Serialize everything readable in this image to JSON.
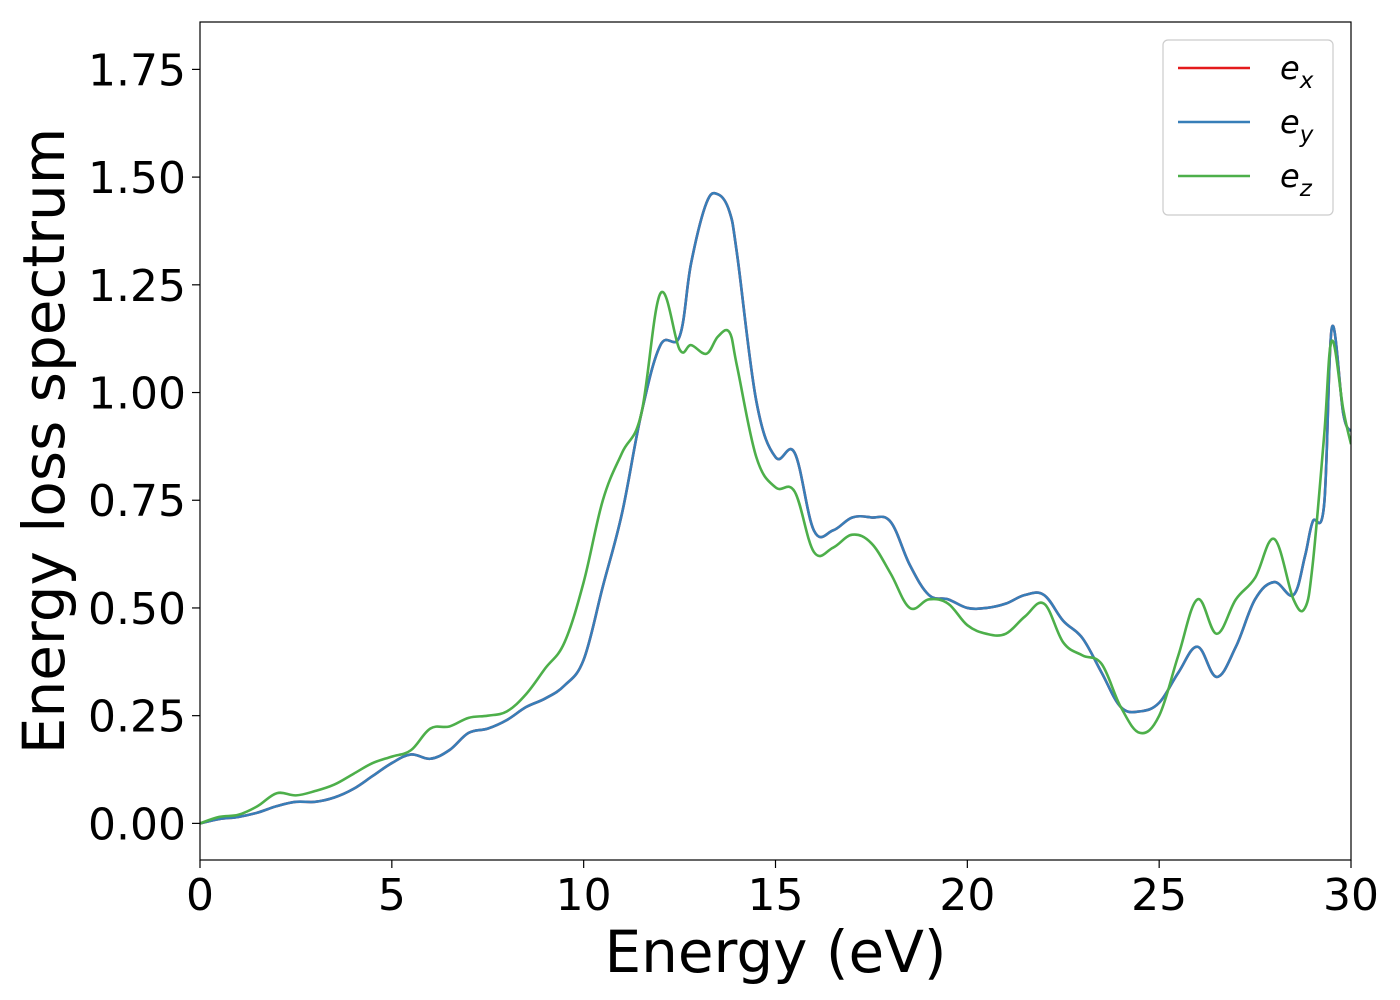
{
  "chart_data": {
    "type": "line",
    "title": "",
    "xlabel": "Energy (eV)",
    "ylabel": "Energy loss spectrum",
    "xlim": [
      0,
      30
    ],
    "ylim": [
      -0.085,
      1.86
    ],
    "xticks": [
      0,
      5,
      10,
      15,
      20,
      25,
      30
    ],
    "xtick_labels": [
      "0",
      "5",
      "10",
      "15",
      "20",
      "25",
      "30"
    ],
    "yticks": [
      0.0,
      0.25,
      0.5,
      0.75,
      1.0,
      1.25,
      1.5,
      1.75
    ],
    "ytick_labels": [
      "0.00",
      "0.25",
      "0.50",
      "0.75",
      "1.00",
      "1.25",
      "1.50",
      "1.75"
    ],
    "grid": false,
    "legend_position": "top-right",
    "x": [
      0,
      0.5,
      1,
      1.5,
      2,
      2.5,
      3,
      3.5,
      4,
      4.5,
      5,
      5.5,
      6,
      6.5,
      7,
      7.5,
      8,
      8.5,
      9,
      9.5,
      10,
      10.5,
      11,
      11.5,
      12,
      12.5,
      12.8,
      13.2,
      13.5,
      13.8,
      14,
      14.5,
      15,
      15.5,
      16,
      16.5,
      17,
      17.5,
      18,
      18.5,
      19,
      19.5,
      20,
      20.5,
      21,
      21.5,
      22,
      22.5,
      23,
      23.5,
      24,
      24.5,
      25,
      25.5,
      26,
      26.5,
      27,
      27.5,
      28,
      28.5,
      28.8,
      29,
      29.3,
      29.5,
      29.8,
      30
    ],
    "series": [
      {
        "name": "e_x",
        "label_base": "e",
        "label_sub": "x",
        "color": "#e41a1c",
        "values": [
          0.0,
          0.01,
          0.015,
          0.025,
          0.04,
          0.05,
          0.05,
          0.06,
          0.08,
          0.11,
          0.14,
          0.16,
          0.15,
          0.17,
          0.21,
          0.22,
          0.24,
          0.27,
          0.29,
          0.32,
          0.38,
          0.55,
          0.72,
          0.95,
          1.11,
          1.13,
          1.3,
          1.44,
          1.46,
          1.42,
          1.32,
          0.98,
          0.85,
          0.86,
          0.68,
          0.68,
          0.71,
          0.71,
          0.7,
          0.6,
          0.53,
          0.52,
          0.5,
          0.5,
          0.51,
          0.53,
          0.53,
          0.47,
          0.43,
          0.35,
          0.27,
          0.26,
          0.28,
          0.35,
          0.41,
          0.34,
          0.41,
          0.52,
          0.56,
          0.53,
          0.62,
          0.7,
          0.74,
          1.15,
          0.95,
          0.91
        ]
      },
      {
        "name": "e_y",
        "label_base": "e",
        "label_sub": "y",
        "color": "#377eb8",
        "values": [
          0.0,
          0.01,
          0.015,
          0.025,
          0.04,
          0.05,
          0.05,
          0.06,
          0.08,
          0.11,
          0.14,
          0.16,
          0.15,
          0.17,
          0.21,
          0.22,
          0.24,
          0.27,
          0.29,
          0.32,
          0.38,
          0.55,
          0.72,
          0.95,
          1.11,
          1.13,
          1.3,
          1.44,
          1.46,
          1.42,
          1.32,
          0.98,
          0.85,
          0.86,
          0.68,
          0.68,
          0.71,
          0.71,
          0.7,
          0.6,
          0.53,
          0.52,
          0.5,
          0.5,
          0.51,
          0.53,
          0.53,
          0.47,
          0.43,
          0.35,
          0.27,
          0.26,
          0.28,
          0.35,
          0.41,
          0.34,
          0.41,
          0.52,
          0.56,
          0.53,
          0.62,
          0.7,
          0.74,
          1.15,
          0.95,
          0.91
        ]
      },
      {
        "name": "e_z",
        "label_base": "e",
        "label_sub": "z",
        "color": "#4daf4a",
        "values": [
          0.0,
          0.015,
          0.02,
          0.04,
          0.07,
          0.065,
          0.075,
          0.09,
          0.115,
          0.14,
          0.155,
          0.17,
          0.22,
          0.225,
          0.245,
          0.25,
          0.26,
          0.3,
          0.36,
          0.42,
          0.56,
          0.75,
          0.86,
          0.95,
          1.23,
          1.1,
          1.11,
          1.09,
          1.13,
          1.14,
          1.06,
          0.85,
          0.78,
          0.77,
          0.63,
          0.64,
          0.67,
          0.65,
          0.58,
          0.5,
          0.52,
          0.51,
          0.46,
          0.44,
          0.44,
          0.48,
          0.51,
          0.42,
          0.39,
          0.37,
          0.27,
          0.21,
          0.25,
          0.39,
          0.52,
          0.44,
          0.52,
          0.57,
          0.66,
          0.52,
          0.5,
          0.6,
          0.9,
          1.12,
          0.96,
          0.88
        ]
      }
    ]
  }
}
